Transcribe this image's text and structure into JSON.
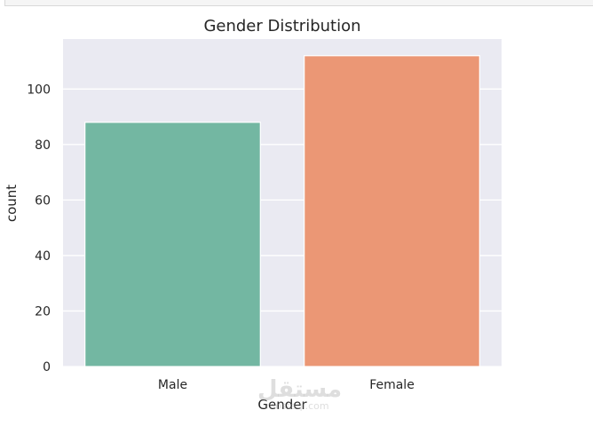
{
  "chart_data": {
    "type": "bar",
    "title": "Gender Distribution",
    "xlabel": "Gender",
    "ylabel": "count",
    "categories": [
      "Male",
      "Female"
    ],
    "values": [
      88,
      112
    ],
    "colors": [
      "#73b7a2",
      "#eb9775"
    ],
    "ylim": [
      0,
      118
    ],
    "yticks": [
      0,
      20,
      40,
      60,
      80,
      100
    ],
    "grid": true,
    "background": "#eaeaf2"
  },
  "watermark": {
    "arabic": "مستقل",
    "latin": "mostaql.com"
  }
}
